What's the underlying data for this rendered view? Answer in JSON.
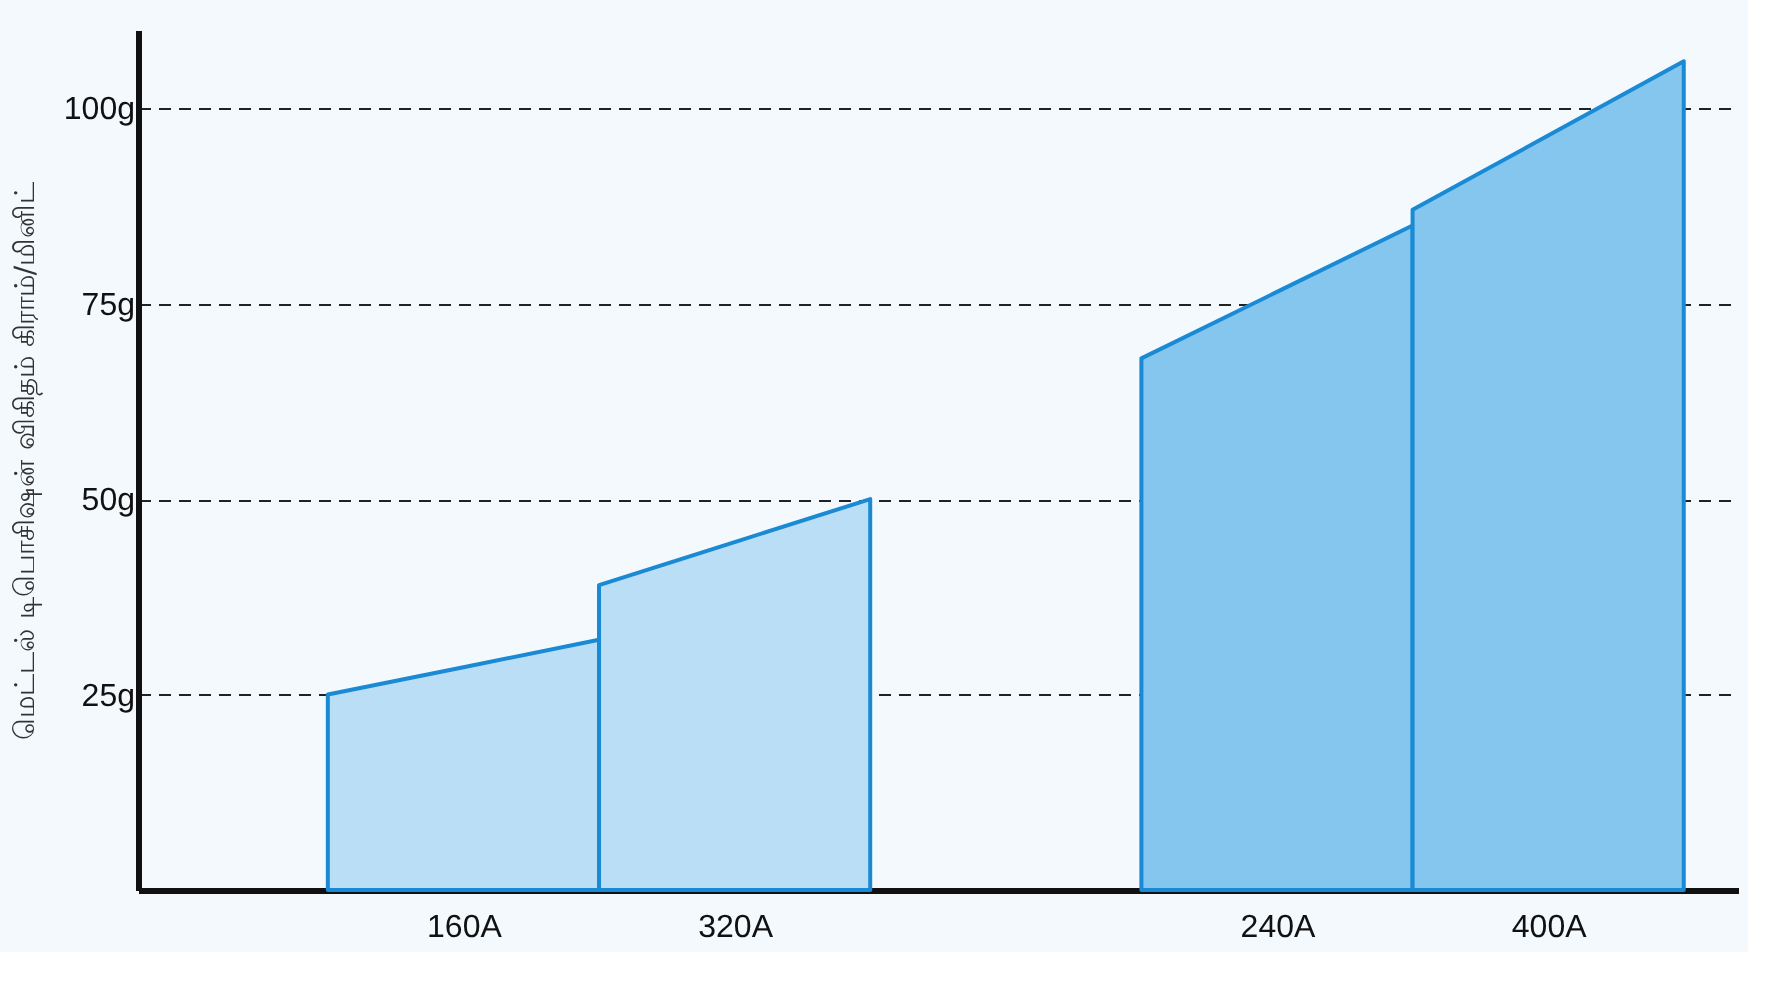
{
  "chart_data": {
    "type": "area",
    "ylabel": "மெட்டல் டிபொசிஷன் விகிதம் கிராம்/மினிட்",
    "categories": [
      null,
      "160A",
      null,
      "320A",
      null,
      null,
      null,
      "240A",
      null,
      "400A",
      null
    ],
    "series": [
      {
        "color": "#b9def5",
        "values": [
          25,
          28.5,
          32,
          null,
          null,
          null,
          null,
          null,
          null,
          null,
          null
        ]
      },
      {
        "color": "#b9def5",
        "values": [
          null,
          null,
          39,
          44.5,
          50,
          null,
          null,
          null,
          null,
          null,
          null
        ]
      },
      {
        "color": "#85c6ef",
        "values": [
          null,
          null,
          null,
          null,
          null,
          null,
          68,
          76.5,
          85,
          null,
          null
        ]
      },
      {
        "color": "#85c6ef",
        "values": [
          null,
          null,
          null,
          null,
          null,
          null,
          null,
          null,
          87,
          96.5,
          106
        ]
      }
    ],
    "ylim": [
      0,
      110
    ],
    "yticks": [
      {
        "value": 25,
        "label": "25g"
      },
      {
        "value": 50,
        "label": "50g"
      },
      {
        "value": 75,
        "label": "75g"
      },
      {
        "value": 100,
        "label": "100g"
      }
    ],
    "grid": "y",
    "line_style": "dashed"
  }
}
